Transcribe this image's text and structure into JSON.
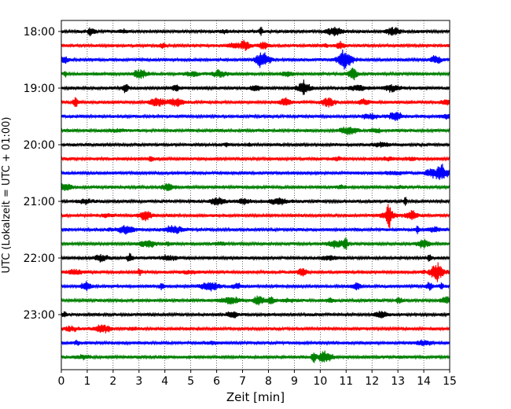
{
  "chart_data": {
    "type": "line",
    "title": "",
    "xlabel": "Zeit  [min]",
    "ylabel": "UTC (Lokalzeit = UTC + 01:00)",
    "xlim": [
      0,
      15
    ],
    "x_ticks": [
      "0",
      "1",
      "2",
      "3",
      "4",
      "5",
      "6",
      "7",
      "8",
      "9",
      "10",
      "11",
      "12",
      "13",
      "14",
      "15"
    ],
    "y_ticks": [
      "18:00",
      "19:00",
      "20:00",
      "21:00",
      "22:00",
      "23:00"
    ],
    "grid": "vertical-dotted",
    "row_interval_minutes": 15,
    "color_cycle": [
      "#000000",
      "#ff0000",
      "#0000ff",
      "#008000"
    ],
    "series": [
      {
        "start": "18:00",
        "color": "#000000"
      },
      {
        "start": "18:15",
        "color": "#ff0000"
      },
      {
        "start": "18:30",
        "color": "#0000ff"
      },
      {
        "start": "18:45",
        "color": "#008000"
      },
      {
        "start": "19:00",
        "color": "#000000"
      },
      {
        "start": "19:15",
        "color": "#ff0000"
      },
      {
        "start": "19:30",
        "color": "#0000ff"
      },
      {
        "start": "19:45",
        "color": "#008000"
      },
      {
        "start": "20:00",
        "color": "#000000"
      },
      {
        "start": "20:15",
        "color": "#ff0000"
      },
      {
        "start": "20:30",
        "color": "#0000ff"
      },
      {
        "start": "20:45",
        "color": "#008000"
      },
      {
        "start": "21:00",
        "color": "#000000"
      },
      {
        "start": "21:15",
        "color": "#ff0000"
      },
      {
        "start": "21:30",
        "color": "#0000ff"
      },
      {
        "start": "21:45",
        "color": "#008000"
      },
      {
        "start": "22:00",
        "color": "#000000"
      },
      {
        "start": "22:15",
        "color": "#ff0000"
      },
      {
        "start": "22:30",
        "color": "#0000ff"
      },
      {
        "start": "22:45",
        "color": "#008000"
      },
      {
        "start": "23:00",
        "color": "#000000"
      },
      {
        "start": "23:15",
        "color": "#ff0000"
      },
      {
        "start": "23:30",
        "color": "#0000ff"
      },
      {
        "start": "23:45",
        "color": "#008000"
      }
    ]
  }
}
